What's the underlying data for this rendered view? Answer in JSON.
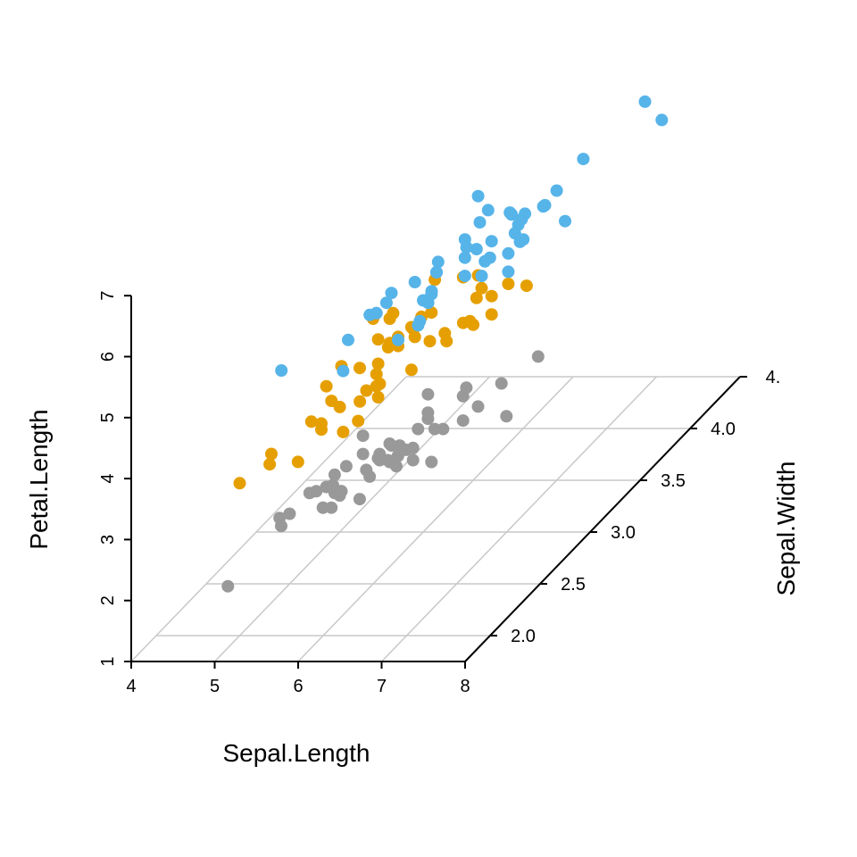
{
  "chart_data": {
    "type": "scatter",
    "projection": "3d",
    "title": "",
    "xlabel": "Sepal.Length",
    "ylabel": "Sepal.Width",
    "zlabel": "Petal.Length",
    "x_ticks": [
      "4",
      "5",
      "6",
      "7",
      "8"
    ],
    "y_ticks": [
      "2.0",
      "2.5",
      "3.0",
      "3.5",
      "4.0",
      "4."
    ],
    "z_ticks": [
      "1",
      "2",
      "3",
      "4",
      "5",
      "6",
      "7"
    ],
    "xlim": [
      4,
      8
    ],
    "ylim": [
      2.0,
      4.5
    ],
    "zlim": [
      1,
      7
    ],
    "grid": "floor",
    "legend": "none",
    "colors": {
      "setosa": "#999999",
      "versicolor": "#E69F00",
      "virginica": "#56B4E9",
      "grid": "#c8c8c8",
      "axis": "#000000"
    },
    "series": [
      {
        "color_key": "setosa",
        "points": [
          [
            5.1,
            3.5,
            1.4
          ],
          [
            4.9,
            3.0,
            1.4
          ],
          [
            4.7,
            3.2,
            1.3
          ],
          [
            4.6,
            3.1,
            1.5
          ],
          [
            5.0,
            3.6,
            1.4
          ],
          [
            5.4,
            3.9,
            1.7
          ],
          [
            4.6,
            3.4,
            1.4
          ],
          [
            5.0,
            3.4,
            1.5
          ],
          [
            4.4,
            2.9,
            1.4
          ],
          [
            4.9,
            3.1,
            1.5
          ],
          [
            5.4,
            3.7,
            1.5
          ],
          [
            4.8,
            3.4,
            1.6
          ],
          [
            4.8,
            3.0,
            1.4
          ],
          [
            4.3,
            3.0,
            1.1
          ],
          [
            5.8,
            4.0,
            1.2
          ],
          [
            5.7,
            4.4,
            1.5
          ],
          [
            5.4,
            3.9,
            1.3
          ],
          [
            5.1,
            3.5,
            1.4
          ],
          [
            5.7,
            3.8,
            1.7
          ],
          [
            5.1,
            3.8,
            1.5
          ],
          [
            5.4,
            3.4,
            1.7
          ],
          [
            5.1,
            3.7,
            1.5
          ],
          [
            4.6,
            3.6,
            1.0
          ],
          [
            5.1,
            3.3,
            1.7
          ],
          [
            4.8,
            3.4,
            1.9
          ],
          [
            5.0,
            3.0,
            1.6
          ],
          [
            5.0,
            3.4,
            1.6
          ],
          [
            5.2,
            3.5,
            1.5
          ],
          [
            5.2,
            3.4,
            1.4
          ],
          [
            4.7,
            3.2,
            1.6
          ],
          [
            4.8,
            3.1,
            1.6
          ],
          [
            5.4,
            3.4,
            1.5
          ],
          [
            5.2,
            4.1,
            1.5
          ],
          [
            5.5,
            4.2,
            1.4
          ],
          [
            4.9,
            3.1,
            1.5
          ],
          [
            5.0,
            3.2,
            1.2
          ],
          [
            5.5,
            3.5,
            1.3
          ],
          [
            4.9,
            3.6,
            1.4
          ],
          [
            4.4,
            3.0,
            1.3
          ],
          [
            5.1,
            3.4,
            1.5
          ],
          [
            5.0,
            3.5,
            1.3
          ],
          [
            4.5,
            2.3,
            1.3
          ],
          [
            4.4,
            3.2,
            1.3
          ],
          [
            5.0,
            3.5,
            1.6
          ],
          [
            5.1,
            3.8,
            1.9
          ],
          [
            4.8,
            3.0,
            1.4
          ],
          [
            5.1,
            3.8,
            1.6
          ],
          [
            4.6,
            3.2,
            1.4
          ],
          [
            5.3,
            3.7,
            1.5
          ],
          [
            5.0,
            3.3,
            1.4
          ]
        ]
      },
      {
        "color_key": "versicolor",
        "points": [
          [
            7.0,
            3.2,
            4.7
          ],
          [
            6.4,
            3.2,
            4.5
          ],
          [
            6.9,
            3.1,
            4.9
          ],
          [
            5.5,
            2.3,
            4.0
          ],
          [
            6.5,
            2.8,
            4.6
          ],
          [
            5.7,
            2.8,
            4.5
          ],
          [
            6.3,
            3.3,
            4.7
          ],
          [
            4.9,
            2.4,
            3.3
          ],
          [
            6.6,
            2.9,
            4.6
          ],
          [
            5.2,
            2.7,
            3.9
          ],
          [
            5.0,
            2.0,
            3.5
          ],
          [
            5.9,
            3.0,
            4.2
          ],
          [
            6.0,
            2.2,
            4.0
          ],
          [
            6.1,
            2.9,
            4.7
          ],
          [
            5.6,
            2.9,
            3.6
          ],
          [
            6.7,
            3.1,
            4.4
          ],
          [
            5.6,
            3.0,
            4.5
          ],
          [
            5.8,
            2.7,
            4.1
          ],
          [
            6.2,
            2.2,
            4.5
          ],
          [
            5.6,
            2.5,
            3.9
          ],
          [
            5.9,
            3.2,
            4.8
          ],
          [
            6.1,
            2.8,
            4.0
          ],
          [
            6.3,
            2.5,
            4.9
          ],
          [
            6.1,
            2.8,
            4.7
          ],
          [
            6.4,
            2.9,
            4.3
          ],
          [
            6.6,
            3.0,
            4.4
          ],
          [
            6.8,
            2.8,
            4.8
          ],
          [
            6.7,
            3.0,
            5.0
          ],
          [
            6.0,
            2.9,
            4.5
          ],
          [
            5.7,
            2.6,
            3.5
          ],
          [
            5.5,
            2.4,
            3.8
          ],
          [
            5.5,
            2.4,
            3.7
          ],
          [
            5.8,
            2.7,
            3.9
          ],
          [
            6.0,
            2.7,
            5.1
          ],
          [
            5.4,
            3.0,
            4.5
          ],
          [
            6.0,
            3.4,
            4.5
          ],
          [
            6.7,
            3.1,
            4.7
          ],
          [
            6.3,
            2.3,
            4.4
          ],
          [
            5.6,
            3.0,
            4.1
          ],
          [
            5.5,
            2.5,
            4.0
          ],
          [
            5.5,
            2.6,
            4.4
          ],
          [
            6.1,
            3.0,
            4.6
          ],
          [
            5.8,
            2.6,
            4.0
          ],
          [
            5.0,
            2.3,
            3.3
          ],
          [
            5.6,
            2.7,
            4.2
          ],
          [
            5.7,
            3.0,
            4.2
          ],
          [
            5.7,
            2.9,
            4.2
          ],
          [
            6.2,
            2.9,
            4.3
          ],
          [
            5.1,
            2.5,
            3.0
          ],
          [
            5.7,
            2.8,
            4.1
          ]
        ]
      },
      {
        "color_key": "virginica",
        "points": [
          [
            6.3,
            3.3,
            6.0
          ],
          [
            5.8,
            2.7,
            5.1
          ],
          [
            7.1,
            3.0,
            5.9
          ],
          [
            6.3,
            2.9,
            5.6
          ],
          [
            6.5,
            3.0,
            5.8
          ],
          [
            7.6,
            3.0,
            6.6
          ],
          [
            4.9,
            2.5,
            4.5
          ],
          [
            7.3,
            2.9,
            6.3
          ],
          [
            6.7,
            2.5,
            5.8
          ],
          [
            7.2,
            3.6,
            6.1
          ],
          [
            6.5,
            3.2,
            5.1
          ],
          [
            6.4,
            2.7,
            5.3
          ],
          [
            6.8,
            3.0,
            5.5
          ],
          [
            5.7,
            2.5,
            5.0
          ],
          [
            5.8,
            2.8,
            5.1
          ],
          [
            6.4,
            3.2,
            5.3
          ],
          [
            6.5,
            3.0,
            5.5
          ],
          [
            7.7,
            3.8,
            6.7
          ],
          [
            7.7,
            2.6,
            6.9
          ],
          [
            6.0,
            2.2,
            5.0
          ],
          [
            6.9,
            3.2,
            5.7
          ],
          [
            5.6,
            2.8,
            4.9
          ],
          [
            7.7,
            2.8,
            6.7
          ],
          [
            6.3,
            2.7,
            4.9
          ],
          [
            6.7,
            3.3,
            5.7
          ],
          [
            7.2,
            3.2,
            6.0
          ],
          [
            6.2,
            2.8,
            4.8
          ],
          [
            6.1,
            3.0,
            4.9
          ],
          [
            6.4,
            2.8,
            5.6
          ],
          [
            7.2,
            3.0,
            5.8
          ],
          [
            7.4,
            2.8,
            6.1
          ],
          [
            7.9,
            3.8,
            6.4
          ],
          [
            6.4,
            2.8,
            5.6
          ],
          [
            6.3,
            2.8,
            5.1
          ],
          [
            6.1,
            2.6,
            5.6
          ],
          [
            7.7,
            3.0,
            6.1
          ],
          [
            6.3,
            3.4,
            5.6
          ],
          [
            6.4,
            3.1,
            5.5
          ],
          [
            6.0,
            3.0,
            4.8
          ],
          [
            6.9,
            3.1,
            5.4
          ],
          [
            6.7,
            3.1,
            5.6
          ],
          [
            6.9,
            3.1,
            5.1
          ],
          [
            5.8,
            2.7,
            5.1
          ],
          [
            6.8,
            3.2,
            5.9
          ],
          [
            6.7,
            3.3,
            5.7
          ],
          [
            6.7,
            3.0,
            5.2
          ],
          [
            6.3,
            2.5,
            5.0
          ],
          [
            6.5,
            3.0,
            5.2
          ],
          [
            6.2,
            3.4,
            5.4
          ],
          [
            5.9,
            3.0,
            5.1
          ]
        ]
      }
    ]
  }
}
